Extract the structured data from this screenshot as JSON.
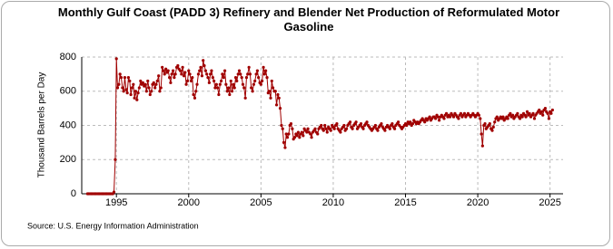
{
  "chart_data": {
    "type": "line",
    "title": "Monthly Gulf Coast (PADD 3) Refinery and Blender Net Production of Reformulated Motor Gasoline",
    "y_label": "Thousand Barrels per Day",
    "source": "Source: U.S. Energy Information Administration",
    "color": "#a00000",
    "grid": true,
    "xlim": [
      1992.6,
      2025.9
    ],
    "xticks": [
      1995,
      2000,
      2005,
      2010,
      2015,
      2020,
      2025
    ],
    "ylim": [
      0,
      800
    ],
    "yticks": [
      0,
      200,
      400,
      600,
      800
    ],
    "x": [
      1993,
      1993.08,
      1993.17,
      1993.25,
      1993.33,
      1993.42,
      1993.5,
      1993.58,
      1993.67,
      1993.75,
      1993.83,
      1993.92,
      1994,
      1994.08,
      1994.17,
      1994.25,
      1994.33,
      1994.42,
      1994.5,
      1994.58,
      1994.67,
      1994.75,
      1994.83,
      1994.92,
      1995,
      1995.08,
      1995.17,
      1995.25,
      1995.33,
      1995.42,
      1995.5,
      1995.58,
      1995.67,
      1995.75,
      1995.83,
      1995.92,
      1996,
      1996.08,
      1996.17,
      1996.25,
      1996.33,
      1996.42,
      1996.5,
      1996.58,
      1996.67,
      1996.75,
      1996.83,
      1996.92,
      1997,
      1997.08,
      1997.17,
      1997.25,
      1997.33,
      1997.42,
      1997.5,
      1997.58,
      1997.67,
      1997.75,
      1997.83,
      1997.92,
      1998,
      1998.08,
      1998.17,
      1998.25,
      1998.33,
      1998.42,
      1998.5,
      1998.58,
      1998.67,
      1998.75,
      1998.83,
      1998.92,
      1999,
      1999.08,
      1999.17,
      1999.25,
      1999.33,
      1999.42,
      1999.5,
      1999.58,
      1999.67,
      1999.75,
      1999.83,
      1999.92,
      2000,
      2000.08,
      2000.17,
      2000.25,
      2000.33,
      2000.42,
      2000.5,
      2000.58,
      2000.67,
      2000.75,
      2000.83,
      2000.92,
      2001,
      2001.08,
      2001.17,
      2001.25,
      2001.33,
      2001.42,
      2001.5,
      2001.58,
      2001.67,
      2001.75,
      2001.83,
      2001.92,
      2002,
      2002.08,
      2002.17,
      2002.25,
      2002.33,
      2002.42,
      2002.5,
      2002.58,
      2002.67,
      2002.75,
      2002.83,
      2002.92,
      2003,
      2003.08,
      2003.17,
      2003.25,
      2003.33,
      2003.42,
      2003.5,
      2003.58,
      2003.67,
      2003.75,
      2003.83,
      2003.92,
      2004,
      2004.08,
      2004.17,
      2004.25,
      2004.33,
      2004.42,
      2004.5,
      2004.58,
      2004.67,
      2004.75,
      2004.83,
      2004.92,
      2005,
      2005.08,
      2005.17,
      2005.25,
      2005.33,
      2005.42,
      2005.5,
      2005.58,
      2005.67,
      2005.75,
      2005.83,
      2005.92,
      2006,
      2006.08,
      2006.17,
      2006.25,
      2006.33,
      2006.42,
      2006.5,
      2006.58,
      2006.67,
      2006.75,
      2006.83,
      2006.92,
      2007,
      2007.08,
      2007.17,
      2007.25,
      2007.33,
      2007.42,
      2007.5,
      2007.58,
      2007.67,
      2007.75,
      2007.83,
      2007.92,
      2008,
      2008.08,
      2008.17,
      2008.25,
      2008.33,
      2008.42,
      2008.5,
      2008.58,
      2008.67,
      2008.75,
      2008.83,
      2008.92,
      2009,
      2009.08,
      2009.17,
      2009.25,
      2009.33,
      2009.42,
      2009.5,
      2009.58,
      2009.67,
      2009.75,
      2009.83,
      2009.92,
      2010,
      2010.08,
      2010.17,
      2010.25,
      2010.33,
      2010.42,
      2010.5,
      2010.58,
      2010.67,
      2010.75,
      2010.83,
      2010.92,
      2011,
      2011.08,
      2011.17,
      2011.25,
      2011.33,
      2011.42,
      2011.5,
      2011.58,
      2011.67,
      2011.75,
      2011.83,
      2011.92,
      2012,
      2012.08,
      2012.17,
      2012.25,
      2012.33,
      2012.42,
      2012.5,
      2012.58,
      2012.67,
      2012.75,
      2012.83,
      2012.92,
      2013,
      2013.08,
      2013.17,
      2013.25,
      2013.33,
      2013.42,
      2013.5,
      2013.58,
      2013.67,
      2013.75,
      2013.83,
      2013.92,
      2014,
      2014.08,
      2014.17,
      2014.25,
      2014.33,
      2014.42,
      2014.5,
      2014.58,
      2014.67,
      2014.75,
      2014.83,
      2014.92,
      2015,
      2015.08,
      2015.17,
      2015.25,
      2015.33,
      2015.42,
      2015.5,
      2015.58,
      2015.67,
      2015.75,
      2015.83,
      2015.92,
      2016,
      2016.08,
      2016.17,
      2016.25,
      2016.33,
      2016.42,
      2016.5,
      2016.58,
      2016.67,
      2016.75,
      2016.83,
      2016.92,
      2017,
      2017.08,
      2017.17,
      2017.25,
      2017.33,
      2017.42,
      2017.5,
      2017.58,
      2017.67,
      2017.75,
      2017.83,
      2017.92,
      2018,
      2018.08,
      2018.17,
      2018.25,
      2018.33,
      2018.42,
      2018.5,
      2018.58,
      2018.67,
      2018.75,
      2018.83,
      2018.92,
      2019,
      2019.08,
      2019.17,
      2019.25,
      2019.33,
      2019.42,
      2019.5,
      2019.58,
      2019.67,
      2019.75,
      2019.83,
      2019.92,
      2020,
      2020.08,
      2020.17,
      2020.25,
      2020.33,
      2020.42,
      2020.5,
      2020.58,
      2020.67,
      2020.75,
      2020.83,
      2020.92,
      2021,
      2021.08,
      2021.17,
      2021.25,
      2021.33,
      2021.42,
      2021.5,
      2021.58,
      2021.67,
      2021.75,
      2021.83,
      2021.92,
      2022,
      2022.08,
      2022.17,
      2022.25,
      2022.33,
      2022.42,
      2022.5,
      2022.58,
      2022.67,
      2022.75,
      2022.83,
      2022.92,
      2023,
      2023.08,
      2023.17,
      2023.25,
      2023.33,
      2023.42,
      2023.5,
      2023.58,
      2023.67,
      2023.75,
      2023.83,
      2023.92,
      2024,
      2024.08,
      2024.17,
      2024.25,
      2024.33,
      2024.42,
      2024.5,
      2024.58,
      2024.67,
      2024.75,
      2024.83,
      2024.92,
      2025,
      2025.08,
      2025.17
    ],
    "values": [
      0,
      0,
      0,
      0,
      0,
      0,
      0,
      0,
      0,
      0,
      0,
      0,
      0,
      0,
      0,
      0,
      0,
      0,
      0,
      0,
      0,
      0,
      10,
      200,
      790,
      620,
      640,
      700,
      680,
      620,
      600,
      680,
      610,
      590,
      680,
      660,
      580,
      620,
      640,
      560,
      600,
      550,
      590,
      620,
      660,
      640,
      650,
      630,
      640,
      600,
      660,
      620,
      580,
      600,
      640,
      650,
      620,
      640,
      660,
      690,
      600,
      620,
      740,
      720,
      700,
      730,
      710,
      720,
      680,
      650,
      700,
      720,
      680,
      700,
      740,
      750,
      730,
      720,
      700,
      740,
      690,
      710,
      640,
      660,
      720,
      700,
      660,
      680,
      580,
      560,
      600,
      640,
      700,
      720,
      740,
      690,
      780,
      750,
      720,
      700,
      680,
      650,
      700,
      720,
      680,
      660,
      620,
      640,
      620,
      580,
      640,
      660,
      700,
      680,
      720,
      640,
      600,
      620,
      580,
      660,
      600,
      640,
      620,
      680,
      660,
      700,
      720,
      700,
      680,
      640,
      620,
      560,
      680,
      700,
      740,
      700,
      620,
      600,
      640,
      660,
      700,
      720,
      680,
      650,
      640,
      660,
      740,
      700,
      720,
      680,
      590,
      600,
      560,
      660,
      620,
      600,
      600,
      520,
      580,
      560,
      500,
      400,
      380,
      300,
      270,
      350,
      330,
      350,
      400,
      410,
      380,
      320,
      330,
      350,
      340,
      360,
      330,
      350,
      360,
      340,
      380,
      370,
      360,
      380,
      360,
      350,
      330,
      360,
      370,
      380,
      360,
      350,
      380,
      390,
      400,
      380,
      370,
      400,
      380,
      360,
      390,
      380,
      370,
      400,
      390,
      380,
      400,
      410,
      380,
      370,
      360,
      380,
      390,
      400,
      370,
      380,
      400,
      410,
      420,
      390,
      380,
      400,
      410,
      420,
      380,
      390,
      400,
      410,
      390,
      380,
      400,
      410,
      420,
      400,
      390,
      380,
      370,
      380,
      390,
      400,
      380,
      370,
      390,
      400,
      410,
      390,
      380,
      370,
      390,
      400,
      390,
      380,
      400,
      410,
      390,
      380,
      400,
      410,
      420,
      400,
      390,
      380,
      390,
      400,
      410,
      400,
      420,
      410,
      420,
      400,
      410,
      430,
      420,
      410,
      420,
      410,
      420,
      430,
      440,
      430,
      420,
      440,
      430,
      440,
      450,
      430,
      440,
      450,
      450,
      440,
      460,
      450,
      430,
      450,
      460,
      450,
      440,
      460,
      470,
      450,
      460,
      450,
      470,
      460,
      450,
      470,
      460,
      450,
      440,
      460,
      470,
      450,
      460,
      470,
      450,
      460,
      470,
      460,
      450,
      460,
      470,
      460,
      450,
      460,
      470,
      460,
      440,
      350,
      280,
      400,
      410,
      380,
      390,
      400,
      410,
      380,
      370,
      390,
      420,
      440,
      450,
      430,
      440,
      450,
      440,
      450,
      430,
      440,
      450,
      440,
      460,
      470,
      450,
      460,
      440,
      450,
      460,
      470,
      450,
      440,
      460,
      450,
      470,
      460,
      450,
      480,
      460,
      470,
      450,
      460,
      470,
      440,
      460,
      470,
      480,
      490,
      470,
      480,
      460,
      490,
      500,
      480,
      470,
      440,
      480,
      470,
      490
    ]
  }
}
